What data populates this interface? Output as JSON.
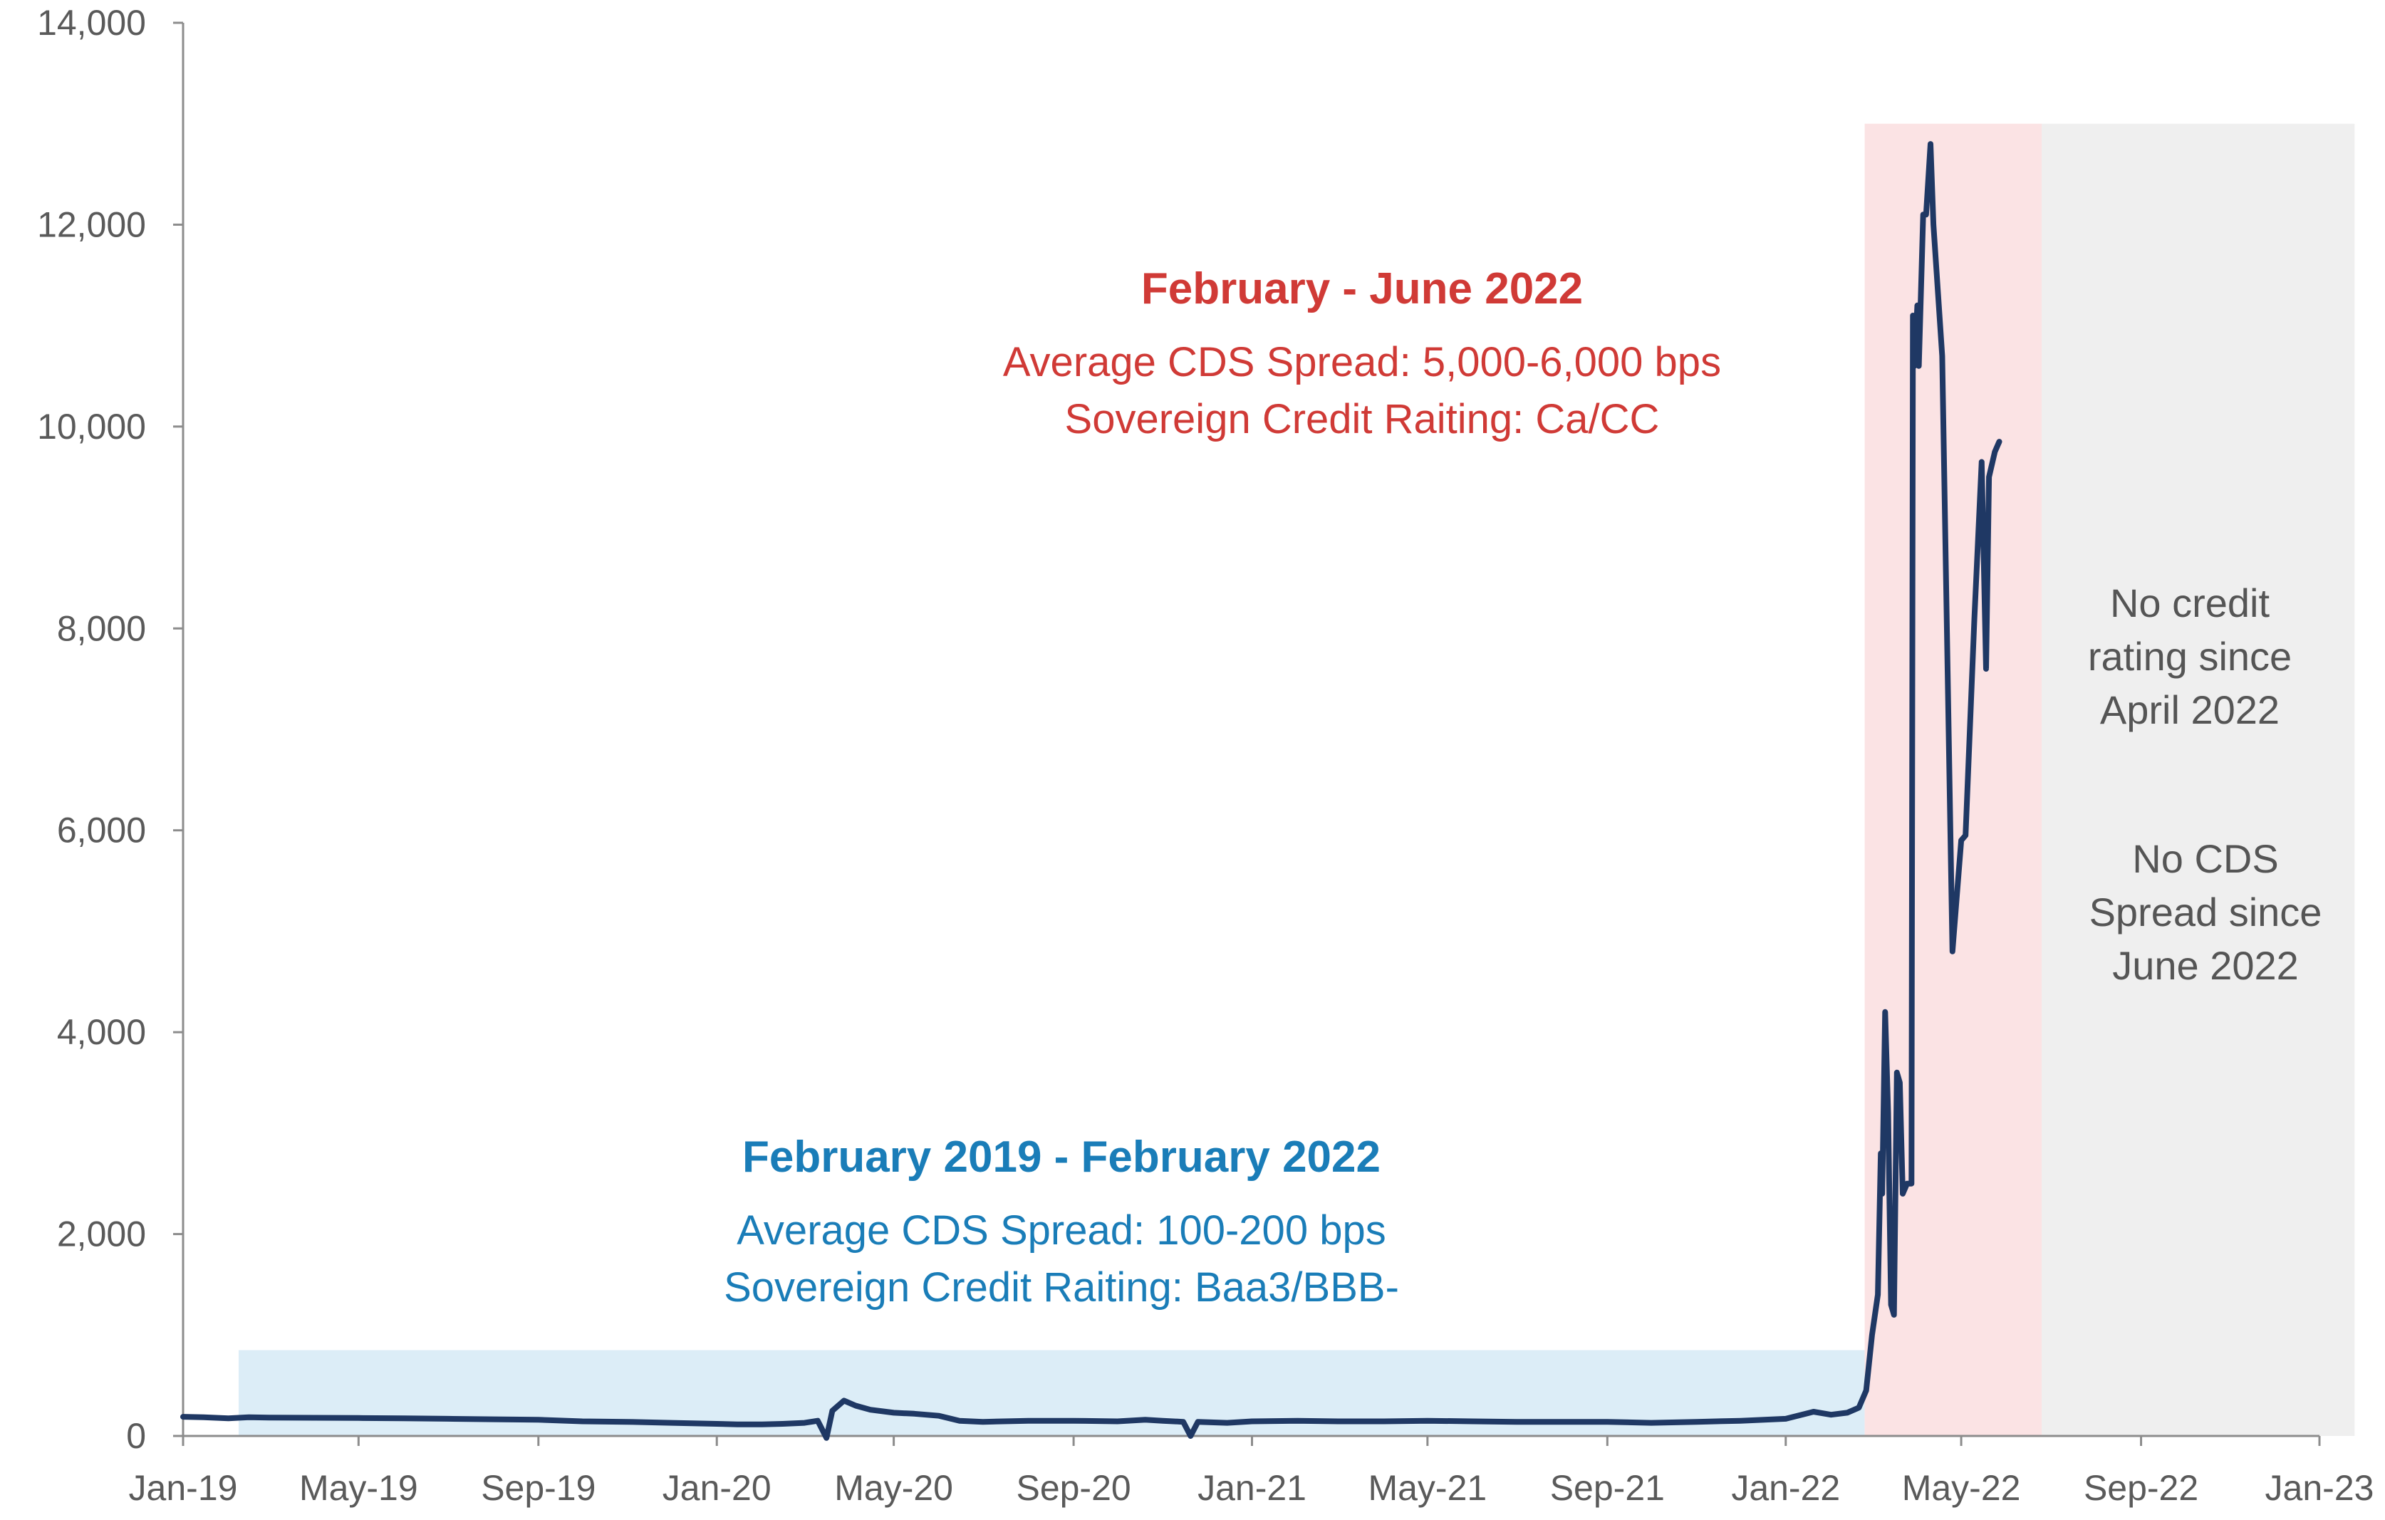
{
  "chart_data": {
    "type": "line",
    "title": "",
    "xlabel": "",
    "ylabel": "",
    "ylim": [
      0,
      14000
    ],
    "xlim": [
      "2019-01-01",
      "2023-01-01"
    ],
    "grid": false,
    "colors": {
      "line": "#1f3864",
      "blue_band": "#dcedf7",
      "pink_band": "#fbe3e4",
      "gray_band": "#efefef",
      "blue_text": "#1a7db8",
      "red_text": "#d03a36",
      "gray_text": "#555555",
      "axis": "#8c8c8c"
    },
    "y_ticks": [
      {
        "value": 0,
        "label": "0"
      },
      {
        "value": 2000,
        "label": "2,000"
      },
      {
        "value": 4000,
        "label": "4,000"
      },
      {
        "value": 6000,
        "label": "6,000"
      },
      {
        "value": 8000,
        "label": "8,000"
      },
      {
        "value": 10000,
        "label": "10,000"
      },
      {
        "value": 12000,
        "label": "12,000"
      },
      {
        "value": 14000,
        "label": "14,000"
      }
    ],
    "x_ticks": [
      {
        "date": "2019-01-01",
        "label": "Jan-19"
      },
      {
        "date": "2019-05-01",
        "label": "May-19"
      },
      {
        "date": "2019-09-01",
        "label": "Sep-19"
      },
      {
        "date": "2020-01-01",
        "label": "Jan-20"
      },
      {
        "date": "2020-05-01",
        "label": "May-20"
      },
      {
        "date": "2020-09-01",
        "label": "Sep-20"
      },
      {
        "date": "2021-01-01",
        "label": "Jan-21"
      },
      {
        "date": "2021-05-01",
        "label": "May-21"
      },
      {
        "date": "2021-09-01",
        "label": "Sep-21"
      },
      {
        "date": "2022-01-01",
        "label": "Jan-22"
      },
      {
        "date": "2022-05-01",
        "label": "May-22"
      },
      {
        "date": "2022-09-01",
        "label": "Sep-22"
      },
      {
        "date": "2023-01-01",
        "label": "Jan-23"
      }
    ],
    "shaded_regions": [
      {
        "name": "blue",
        "start": "2019-02-08",
        "end": "2022-02-24",
        "ymax": 850,
        "color": "#dcedf7"
      },
      {
        "name": "pink",
        "start": "2022-02-24",
        "end": "2022-06-25",
        "ymax": 13000,
        "color": "#fbe3e4"
      },
      {
        "name": "gray",
        "start": "2022-06-25",
        "end": "2023-01-25",
        "ymax": 13000,
        "color": "#efefef"
      }
    ],
    "series": [
      {
        "name": "",
        "points": [
          [
            "2019-01-01",
            190
          ],
          [
            "2019-01-15",
            185
          ],
          [
            "2019-02-01",
            175
          ],
          [
            "2019-02-15",
            185
          ],
          [
            "2019-03-01",
            182
          ],
          [
            "2019-04-01",
            180
          ],
          [
            "2019-05-01",
            178
          ],
          [
            "2019-06-01",
            175
          ],
          [
            "2019-07-01",
            170
          ],
          [
            "2019-08-01",
            165
          ],
          [
            "2019-09-01",
            160
          ],
          [
            "2019-10-01",
            145
          ],
          [
            "2019-11-01",
            140
          ],
          [
            "2019-12-01",
            130
          ],
          [
            "2020-01-01",
            120
          ],
          [
            "2020-01-15",
            115
          ],
          [
            "2020-02-01",
            115
          ],
          [
            "2020-02-15",
            120
          ],
          [
            "2020-03-01",
            130
          ],
          [
            "2020-03-10",
            150
          ],
          [
            "2020-03-16",
            -20
          ],
          [
            "2020-03-20",
            250
          ],
          [
            "2020-03-28",
            350
          ],
          [
            "2020-04-05",
            300
          ],
          [
            "2020-04-15",
            260
          ],
          [
            "2020-05-01",
            230
          ],
          [
            "2020-05-15",
            220
          ],
          [
            "2020-06-01",
            200
          ],
          [
            "2020-06-15",
            150
          ],
          [
            "2020-07-01",
            140
          ],
          [
            "2020-08-01",
            150
          ],
          [
            "2020-09-01",
            150
          ],
          [
            "2020-10-01",
            145
          ],
          [
            "2020-10-20",
            160
          ],
          [
            "2020-11-01",
            150
          ],
          [
            "2020-11-15",
            140
          ],
          [
            "2020-11-20",
            0
          ],
          [
            "2020-11-25",
            140
          ],
          [
            "2020-12-15",
            130
          ],
          [
            "2021-01-01",
            145
          ],
          [
            "2021-02-01",
            150
          ],
          [
            "2021-03-01",
            145
          ],
          [
            "2021-04-01",
            145
          ],
          [
            "2021-05-01",
            150
          ],
          [
            "2021-06-01",
            145
          ],
          [
            "2021-07-01",
            140
          ],
          [
            "2021-08-01",
            140
          ],
          [
            "2021-09-01",
            140
          ],
          [
            "2021-10-01",
            130
          ],
          [
            "2021-11-01",
            140
          ],
          [
            "2021-12-01",
            150
          ],
          [
            "2022-01-01",
            170
          ],
          [
            "2022-01-20",
            240
          ],
          [
            "2022-02-01",
            210
          ],
          [
            "2022-02-12",
            230
          ],
          [
            "2022-02-20",
            280
          ],
          [
            "2022-02-25",
            450
          ],
          [
            "2022-03-01",
            1000
          ],
          [
            "2022-03-05",
            1400
          ],
          [
            "2022-03-07",
            2800
          ],
          [
            "2022-03-08",
            2400
          ],
          [
            "2022-03-10",
            4200
          ],
          [
            "2022-03-12",
            3200
          ],
          [
            "2022-03-14",
            1300
          ],
          [
            "2022-03-16",
            1200
          ],
          [
            "2022-03-18",
            3600
          ],
          [
            "2022-03-20",
            3500
          ],
          [
            "2022-03-22",
            2400
          ],
          [
            "2022-03-25",
            2500
          ],
          [
            "2022-03-28",
            2500
          ],
          [
            "2022-03-29",
            11100
          ],
          [
            "2022-03-30",
            10600
          ],
          [
            "2022-04-01",
            11200
          ],
          [
            "2022-04-02",
            10600
          ],
          [
            "2022-04-05",
            12100
          ],
          [
            "2022-04-07",
            12100
          ],
          [
            "2022-04-10",
            12800
          ],
          [
            "2022-04-12",
            12000
          ],
          [
            "2022-04-18",
            10700
          ],
          [
            "2022-04-25",
            4800
          ],
          [
            "2022-05-01",
            5900
          ],
          [
            "2022-05-04",
            5950
          ],
          [
            "2022-05-10",
            8100
          ],
          [
            "2022-05-15",
            9650
          ],
          [
            "2022-05-18",
            7600
          ],
          [
            "2022-05-20",
            9500
          ],
          [
            "2022-05-24",
            9750
          ],
          [
            "2022-05-27",
            9850
          ]
        ]
      }
    ],
    "annotations": {
      "blue_title": "February 2019 - February 2022",
      "blue_line1": "Average CDS Spread: 100-200 bps",
      "blue_line2": "Sovereign Credit Raiting: Baa3/BBB-",
      "red_title": "February - June 2022",
      "red_line1": "Average CDS Spread: 5,000-6,000 bps",
      "red_line2": "Sovereign Credit Raiting: Ca/CC",
      "gray1_line1": "No credit",
      "gray1_line2": "rating since",
      "gray1_line3": "April 2022",
      "gray2_line1": "No CDS",
      "gray2_line2": "Spread since",
      "gray2_line3": "June 2022"
    }
  }
}
